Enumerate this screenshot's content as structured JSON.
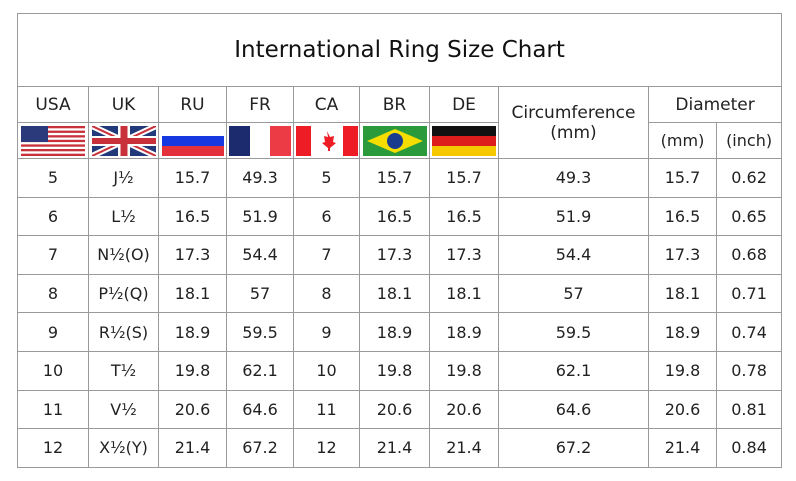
{
  "title": "International Ring Size Chart",
  "headers": {
    "usa": "USA",
    "uk": "UK",
    "ru": "RU",
    "fr": "FR",
    "ca": "CA",
    "br": "BR",
    "de": "DE",
    "circ": "Circumference",
    "circ_unit": "(mm)",
    "diameter": "Diameter",
    "mm": "(mm)",
    "inch": "(inch)"
  },
  "flags": [
    "usa-flag-icon",
    "uk-flag-icon",
    "russia-flag-icon",
    "france-flag-icon",
    "canada-flag-icon",
    "brazil-flag-icon",
    "germany-flag-icon"
  ],
  "rows": [
    [
      "5",
      "J½",
      "15.7",
      "49.3",
      "5",
      "15.7",
      "15.7",
      "49.3",
      "15.7",
      "0.62"
    ],
    [
      "6",
      "L½",
      "16.5",
      "51.9",
      "6",
      "16.5",
      "16.5",
      "51.9",
      "16.5",
      "0.65"
    ],
    [
      "7",
      "N½(O)",
      "17.3",
      "54.4",
      "7",
      "17.3",
      "17.3",
      "54.4",
      "17.3",
      "0.68"
    ],
    [
      "8",
      "P½(Q)",
      "18.1",
      "57",
      "8",
      "18.1",
      "18.1",
      "57",
      "18.1",
      "0.71"
    ],
    [
      "9",
      "R½(S)",
      "18.9",
      "59.5",
      "9",
      "18.9",
      "18.9",
      "59.5",
      "18.9",
      "0.74"
    ],
    [
      "10",
      "T½",
      "19.8",
      "62.1",
      "10",
      "19.8",
      "19.8",
      "62.1",
      "19.8",
      "0.78"
    ],
    [
      "11",
      "V½",
      "20.6",
      "64.6",
      "11",
      "20.6",
      "20.6",
      "64.6",
      "20.6",
      "0.81"
    ],
    [
      "12",
      "X½(Y)",
      "21.4",
      "67.2",
      "12",
      "21.4",
      "21.4",
      "67.2",
      "21.4",
      "0.84"
    ]
  ]
}
